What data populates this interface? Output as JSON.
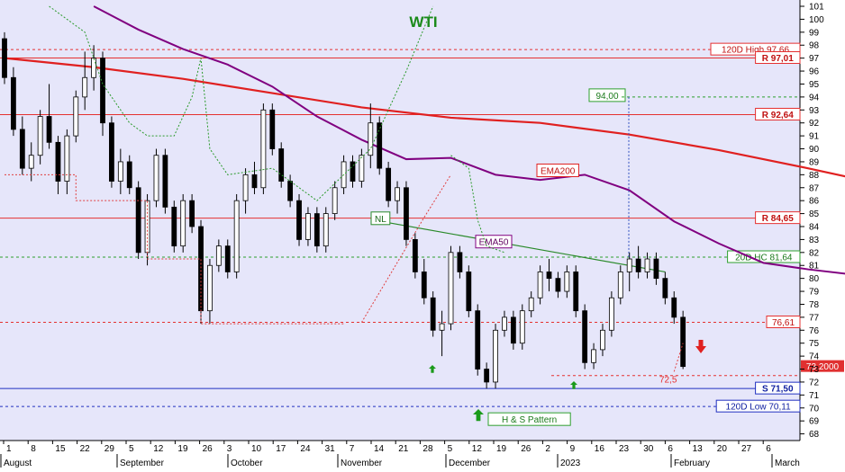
{
  "chart_data": {
    "type": "candlestick",
    "title": "WTI",
    "ylim": [
      67,
      101
    ],
    "y_ticks": [
      68,
      69,
      70,
      71,
      72,
      73,
      74,
      75,
      76,
      77,
      78,
      79,
      80,
      81,
      82,
      83,
      84,
      85,
      86,
      87,
      88,
      89,
      90,
      91,
      92,
      93,
      94,
      95,
      96,
      97,
      98,
      99,
      100,
      101
    ],
    "x_day_labels": [
      "1",
      "8",
      "15",
      "22",
      "29",
      "5",
      "12",
      "19",
      "26",
      "3",
      "10",
      "17",
      "24",
      "31",
      "7",
      "14",
      "21",
      "28",
      "5",
      "12",
      "19",
      "26",
      "2",
      "9",
      "16",
      "23",
      "30",
      "6",
      "13",
      "20",
      "27",
      "6"
    ],
    "x_month_labels": [
      "August",
      "September",
      "October",
      "November",
      "December",
      "2023",
      "February",
      "March"
    ],
    "current_price_label": "73.2000",
    "levels": [
      {
        "label": "120D High 97,66",
        "value": 97.66,
        "style": "dashed",
        "color": "#e53030"
      },
      {
        "label": "R 97,01",
        "value": 97.01,
        "style": "solid",
        "color": "#e53030"
      },
      {
        "label": "R 92,64",
        "value": 92.64,
        "style": "solid",
        "color": "#e53030"
      },
      {
        "label": "R 84,65",
        "value": 84.65,
        "style": "solid",
        "color": "#e53030"
      },
      {
        "label": "20D HC 81,64",
        "value": 81.64,
        "style": "dashed",
        "color": "#2ea02e"
      },
      {
        "label": "76,61",
        "value": 76.61,
        "style": "dashed",
        "color": "#e53030"
      },
      {
        "label": "S 71,50",
        "value": 71.5,
        "style": "solid",
        "color": "#2030c0"
      },
      {
        "label": "120D Low 70,11",
        "value": 70.11,
        "style": "dashed",
        "color": "#2030c0"
      }
    ],
    "annotations": {
      "ema200": "EMA200",
      "ema50": "EMA50",
      "neckline": "NL",
      "hs_pattern": "H & S Pattern",
      "target": "94,00",
      "level_725": "72,5"
    },
    "series": [
      {
        "name": "EMA200",
        "color": "#e02020",
        "x": [
          0,
          20,
          40,
          60,
          80,
          100,
          120,
          140,
          160,
          180,
          200,
          220,
          240
        ],
        "values": [
          97.0,
          96.3,
          95.4,
          94.3,
          93.2,
          92.4,
          92.0,
          91.1,
          89.9,
          88.5,
          87.0,
          86.4,
          85.8
        ]
      },
      {
        "name": "EMA50",
        "color": "#800080",
        "x": [
          20,
          30,
          40,
          50,
          60,
          70,
          80,
          90,
          100,
          110,
          120,
          130,
          140,
          150,
          160,
          170,
          180,
          190,
          200,
          210,
          220,
          230,
          240
        ],
        "values": [
          101.0,
          99.2,
          97.7,
          96.5,
          94.8,
          92.5,
          90.7,
          89.2,
          89.3,
          88.0,
          87.6,
          88.0,
          86.8,
          84.4,
          82.7,
          81.2,
          80.7,
          80.3,
          79.8,
          79.8,
          80.0,
          79.5,
          79.0
        ]
      }
    ],
    "candles": [
      [
        0,
        98.5,
        99.0,
        95.0,
        95.5
      ],
      [
        2,
        95.5,
        96.3,
        91.0,
        91.5
      ],
      [
        4,
        91.5,
        92.5,
        88.0,
        88.5
      ],
      [
        6,
        88.5,
        90.5,
        87.5,
        89.5
      ],
      [
        8,
        89.5,
        93.0,
        88.8,
        92.5
      ],
      [
        10,
        92.5,
        95.0,
        90.0,
        90.5
      ],
      [
        12,
        90.5,
        91.0,
        86.5,
        87.5
      ],
      [
        14,
        87.5,
        91.5,
        86.5,
        91.0
      ],
      [
        16,
        91.0,
        94.5,
        90.5,
        94.0
      ],
      [
        18,
        94.0,
        97.5,
        93.0,
        95.5
      ],
      [
        20,
        95.5,
        98.0,
        94.5,
        97.0
      ],
      [
        22,
        97.0,
        97.5,
        91.0,
        92.0
      ],
      [
        24,
        92.0,
        92.5,
        87.0,
        87.5
      ],
      [
        26,
        87.5,
        90.0,
        86.5,
        89.0
      ],
      [
        28,
        89.0,
        89.5,
        86.5,
        87.0
      ],
      [
        30,
        87.0,
        87.5,
        81.5,
        82.0
      ],
      [
        32,
        82.0,
        86.5,
        81.0,
        86.0
      ],
      [
        34,
        86.0,
        90.0,
        85.5,
        89.5
      ],
      [
        36,
        89.5,
        90.0,
        85.0,
        85.5
      ],
      [
        38,
        85.5,
        86.0,
        82.0,
        82.5
      ],
      [
        40,
        82.5,
        86.5,
        82.0,
        86.0
      ],
      [
        42,
        86.0,
        86.5,
        83.5,
        84.0
      ],
      [
        44,
        84.0,
        84.5,
        76.5,
        77.5
      ],
      [
        46,
        77.5,
        81.5,
        76.5,
        81.0
      ],
      [
        48,
        81.0,
        83.0,
        80.5,
        82.5
      ],
      [
        50,
        82.5,
        83.0,
        80.0,
        80.5
      ],
      [
        52,
        80.5,
        86.5,
        80.0,
        86.0
      ],
      [
        54,
        86.0,
        88.5,
        85.0,
        88.0
      ],
      [
        56,
        88.0,
        89.0,
        86.5,
        87.0
      ],
      [
        58,
        87.0,
        93.5,
        86.5,
        93.0
      ],
      [
        60,
        93.0,
        93.5,
        89.5,
        90.0
      ],
      [
        62,
        90.0,
        90.5,
        87.0,
        87.5
      ],
      [
        64,
        87.5,
        88.0,
        85.5,
        86.0
      ],
      [
        66,
        86.0,
        86.5,
        82.5,
        83.0
      ],
      [
        68,
        83.0,
        85.5,
        82.5,
        85.0
      ],
      [
        70,
        85.0,
        85.5,
        82.0,
        82.5
      ],
      [
        72,
        82.5,
        85.5,
        82.0,
        85.0
      ],
      [
        74,
        85.0,
        87.5,
        84.5,
        87.0
      ],
      [
        76,
        87.0,
        89.5,
        86.5,
        89.0
      ],
      [
        78,
        89.0,
        89.5,
        87.0,
        87.5
      ],
      [
        80,
        87.5,
        90.0,
        87.0,
        89.5
      ],
      [
        82,
        89.5,
        93.5,
        88.5,
        92.0
      ],
      [
        84,
        92.0,
        92.5,
        88.0,
        88.5
      ],
      [
        86,
        88.5,
        89.0,
        85.5,
        86.0
      ],
      [
        88,
        86.0,
        87.5,
        85.0,
        87.0
      ],
      [
        90,
        87.0,
        87.5,
        82.5,
        83.0
      ],
      [
        92,
        83.0,
        83.5,
        80.0,
        80.5
      ],
      [
        94,
        80.5,
        81.5,
        78.0,
        78.5
      ],
      [
        96,
        78.5,
        79.0,
        75.5,
        76.0
      ],
      [
        98,
        76.0,
        77.5,
        74.0,
        76.5
      ],
      [
        100,
        76.5,
        82.5,
        76.0,
        82.0
      ],
      [
        102,
        82.0,
        82.5,
        80.0,
        80.5
      ],
      [
        104,
        80.5,
        81.0,
        77.0,
        77.5
      ],
      [
        106,
        77.5,
        78.0,
        72.5,
        73.0
      ],
      [
        108,
        73.0,
        73.5,
        71.5,
        72.0
      ],
      [
        110,
        72.0,
        76.5,
        71.5,
        76.0
      ],
      [
        112,
        76.0,
        77.5,
        75.5,
        77.0
      ],
      [
        114,
        77.0,
        77.5,
        74.5,
        75.0
      ],
      [
        116,
        75.0,
        78.0,
        74.5,
        77.5
      ],
      [
        118,
        77.5,
        79.0,
        77.0,
        78.5
      ],
      [
        120,
        78.5,
        81.0,
        78.0,
        80.5
      ],
      [
        122,
        80.5,
        81.5,
        79.0,
        80.0
      ],
      [
        124,
        80.0,
        80.5,
        78.5,
        79.0
      ],
      [
        126,
        79.0,
        81.0,
        78.5,
        80.5
      ],
      [
        128,
        80.5,
        81.0,
        77.0,
        77.5
      ],
      [
        130,
        77.5,
        78.0,
        73.0,
        73.5
      ],
      [
        132,
        73.5,
        75.0,
        73.0,
        74.5
      ],
      [
        134,
        74.5,
        76.5,
        74.0,
        76.0
      ],
      [
        136,
        76.0,
        79.0,
        75.5,
        78.5
      ],
      [
        138,
        78.5,
        81.0,
        78.0,
        80.5
      ],
      [
        140,
        80.5,
        82.0,
        79.0,
        81.5
      ],
      [
        142,
        81.5,
        82.5,
        80.0,
        80.5
      ],
      [
        144,
        80.5,
        82.0,
        80.0,
        81.5
      ],
      [
        146,
        81.5,
        82.0,
        79.5,
        80.0
      ],
      [
        148,
        80.0,
        80.5,
        78.0,
        78.5
      ],
      [
        150,
        78.5,
        79.0,
        76.5,
        77.0
      ],
      [
        152,
        77.0,
        77.5,
        73.0,
        73.2
      ]
    ]
  }
}
